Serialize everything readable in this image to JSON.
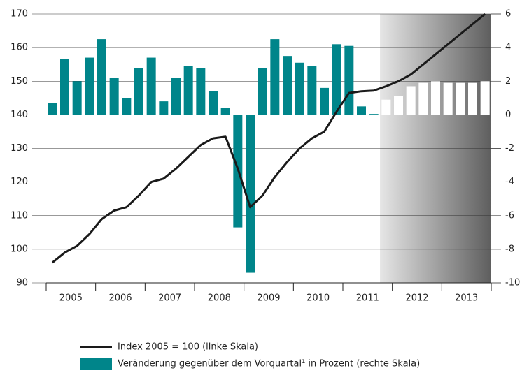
{
  "chart_data": {
    "type": "bar_line",
    "categories": [
      "2005",
      null,
      null,
      null,
      "2006",
      null,
      null,
      null,
      "2007",
      null,
      null,
      null,
      "2008",
      null,
      null,
      null,
      "2009",
      null,
      null,
      null,
      "2010",
      null,
      null,
      null,
      "2011",
      null,
      null,
      null,
      "2012",
      null,
      null,
      null,
      "2013",
      null,
      null,
      null
    ],
    "series": [
      {
        "name": "Index 2005 = 100 (linke Skala)",
        "type": "line",
        "color": "#1a1a1a",
        "values": [
          96,
          99,
          101,
          104.5,
          109,
          111.5,
          112.5,
          116,
          120,
          121,
          124,
          127.5,
          131,
          133,
          133.5,
          124,
          112.5,
          116,
          121.5,
          126,
          130,
          133,
          135,
          141,
          146.5,
          147,
          147.2,
          148.5,
          150,
          152,
          155,
          158,
          161,
          164,
          167,
          170
        ]
      },
      {
        "name": "Veränderung gegenüber dem Vorquartal¹ in Prozent (rechte Skala)",
        "type": "bar",
        "axis": "y2",
        "color": "#00858a",
        "colors": [
          "#00858a",
          "#00858a",
          "#00858a",
          "#00858a",
          "#00858a",
          "#00858a",
          "#00858a",
          "#00858a",
          "#00858a",
          "#00858a",
          "#00858a",
          "#00858a",
          "#00858a",
          "#00858a",
          "#00858a",
          "#00858a",
          "#00858a",
          "#00858a",
          "#00858a",
          "#00858a",
          "#00858a",
          "#00858a",
          "#00858a",
          "#00858a",
          "#00858a",
          "#00858a",
          "#00858a",
          "#ffffff",
          "#ffffff",
          "#ffffff",
          "#ffffff",
          "#ffffff",
          "#ffffff",
          "#ffffff",
          "#ffffff",
          "#ffffff"
        ],
        "values": [
          0.7,
          3.3,
          2.0,
          3.4,
          4.5,
          2.2,
          1.0,
          2.8,
          3.4,
          0.8,
          2.2,
          2.9,
          2.8,
          1.4,
          0.4,
          -6.7,
          -9.4,
          2.8,
          4.5,
          3.5,
          3.1,
          2.9,
          1.6,
          4.2,
          4.1,
          0.5,
          0.05,
          0.9,
          1.1,
          1.7,
          1.9,
          2.0,
          1.9,
          1.9,
          1.9,
          2.0
        ]
      }
    ],
    "ylim": [
      90,
      170
    ],
    "yticks": [
      90,
      100,
      110,
      120,
      130,
      140,
      150,
      160,
      170
    ],
    "y2lim": [
      -10,
      6
    ],
    "y2ticks": [
      -10,
      -8,
      -6,
      -4,
      -2,
      0,
      2,
      4,
      6
    ],
    "grid": true
  }
}
